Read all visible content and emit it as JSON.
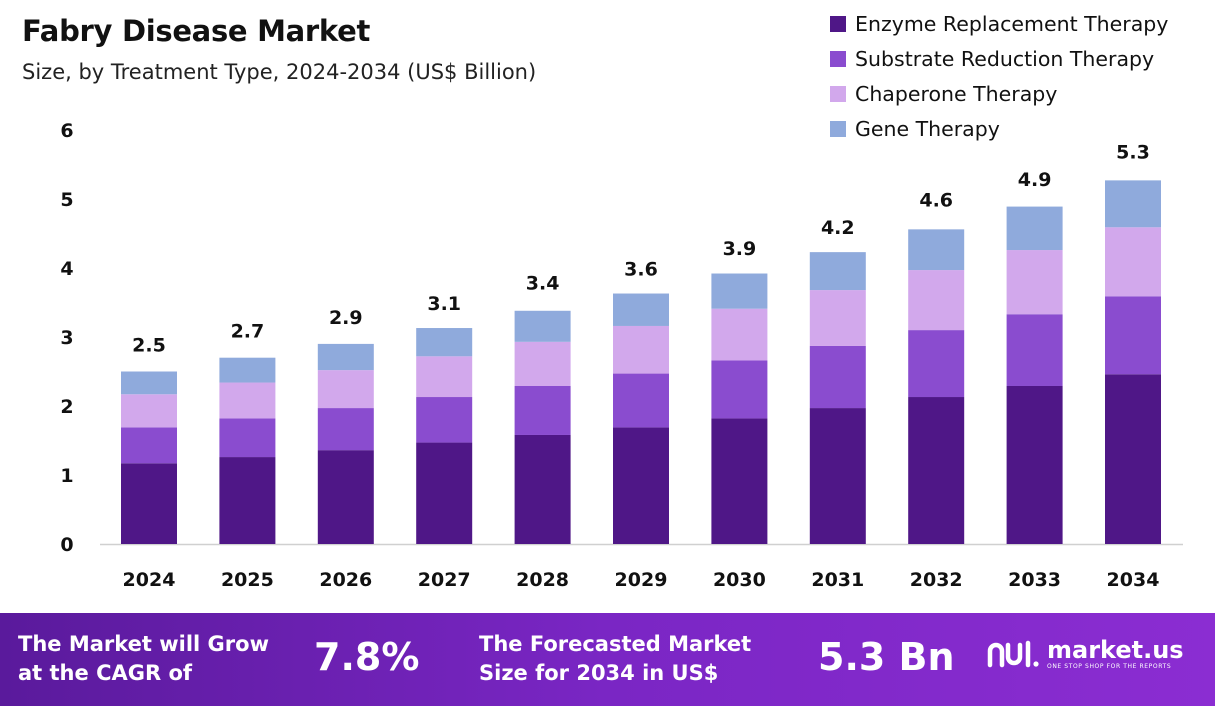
{
  "header": {
    "title": "Fabry Disease Market",
    "subtitle": "Size, by Treatment Type, 2024-2034 (US$ Billion)"
  },
  "chart_data": {
    "type": "bar",
    "stacked": true,
    "title": "Fabry Disease Market",
    "subtitle": "Size, by Treatment Type, 2024-2034 (US$ Billion)",
    "xlabel": "",
    "ylabel": "",
    "ylim": [
      0,
      6
    ],
    "yticks": [
      0,
      1,
      2,
      3,
      4,
      5,
      6
    ],
    "grid": false,
    "legend_position": "top-right",
    "categories": [
      "2024",
      "2025",
      "2026",
      "2027",
      "2028",
      "2029",
      "2030",
      "2031",
      "2032",
      "2033",
      "2034"
    ],
    "totals": [
      2.5,
      2.7,
      2.9,
      3.1,
      3.4,
      3.6,
      3.9,
      4.2,
      4.6,
      4.9,
      5.3
    ],
    "total_labels": [
      "2.5",
      "2.7",
      "2.9",
      "3.1",
      "3.4",
      "3.6",
      "3.9",
      "4.2",
      "4.6",
      "4.9",
      "5.3"
    ],
    "series": [
      {
        "name": "Enzyme Replacement Therapy",
        "color": "#4f1787",
        "values": [
          1.17,
          1.26,
          1.36,
          1.47,
          1.58,
          1.69,
          1.82,
          1.97,
          2.13,
          2.29,
          2.46
        ]
      },
      {
        "name": "Substrate Reduction Therapy",
        "color": "#8a4ccf",
        "values": [
          0.52,
          0.56,
          0.61,
          0.66,
          0.71,
          0.78,
          0.84,
          0.9,
          0.97,
          1.04,
          1.13
        ]
      },
      {
        "name": "Chaperone Therapy",
        "color": "#d2a8ec",
        "values": [
          0.48,
          0.52,
          0.55,
          0.59,
          0.64,
          0.69,
          0.75,
          0.81,
          0.87,
          0.93,
          1.0
        ]
      },
      {
        "name": "Gene Therapy",
        "color": "#8faadc",
        "values": [
          0.33,
          0.36,
          0.38,
          0.41,
          0.45,
          0.47,
          0.51,
          0.55,
          0.59,
          0.63,
          0.68
        ]
      }
    ]
  },
  "footer": {
    "cagr_text_line1": "The Market will Grow",
    "cagr_text_line2": "at the CAGR of",
    "cagr_value": "7.8%",
    "forecast_text_line1": "The Forecasted Market",
    "forecast_text_line2": "Size for 2034 in US$",
    "forecast_value": "5.3 Bn",
    "brand_name": "market.us",
    "brand_tagline": "ONE STOP SHOP FOR THE REPORTS"
  }
}
